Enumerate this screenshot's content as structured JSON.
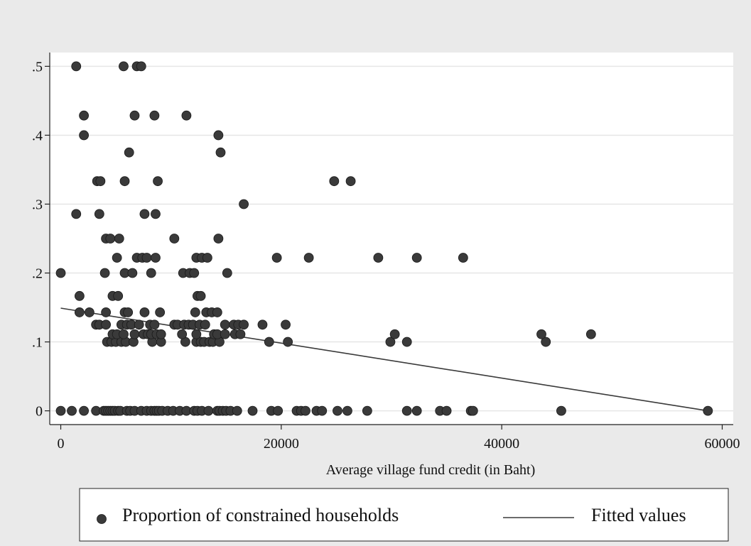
{
  "chart_data": {
    "type": "scatter",
    "title": "",
    "xlabel": "Average village fund credit (in Baht)",
    "ylabel": "",
    "xlim": [
      -1000,
      61000
    ],
    "ylim": [
      -0.02,
      0.52
    ],
    "x_ticks": [
      0,
      20000,
      40000,
      60000
    ],
    "x_tick_labels": [
      "0",
      "20000",
      "40000",
      "60000"
    ],
    "y_ticks": [
      0,
      0.1,
      0.2,
      0.3,
      0.4,
      0.5
    ],
    "y_tick_labels": [
      "0",
      ".1",
      ".2",
      ".3",
      ".4",
      ".5"
    ],
    "grid": true,
    "legend_position": "bottom",
    "colors": {
      "background": "#eaeaea",
      "plot_background": "#ffffff",
      "grid": "#e6e6e6",
      "marker": "#3a3a3a",
      "line": "#3a3a3a"
    },
    "series": [
      {
        "name": "Proportion of constrained households",
        "type": "scatter",
        "points": [
          [
            0,
            0
          ],
          [
            1000,
            0
          ],
          [
            2100,
            0
          ],
          [
            3200,
            0
          ],
          [
            3900,
            0
          ],
          [
            4100,
            0
          ],
          [
            4300,
            0
          ],
          [
            4500,
            0
          ],
          [
            4700,
            0
          ],
          [
            4900,
            0
          ],
          [
            5200,
            0
          ],
          [
            5400,
            0
          ],
          [
            6000,
            0
          ],
          [
            6300,
            0
          ],
          [
            6700,
            0
          ],
          [
            7300,
            0
          ],
          [
            7800,
            0
          ],
          [
            8200,
            0
          ],
          [
            8500,
            0
          ],
          [
            8700,
            0
          ],
          [
            8900,
            0
          ],
          [
            9200,
            0
          ],
          [
            9700,
            0
          ],
          [
            10200,
            0
          ],
          [
            10800,
            0
          ],
          [
            11400,
            0
          ],
          [
            12100,
            0
          ],
          [
            12400,
            0
          ],
          [
            12800,
            0
          ],
          [
            13400,
            0
          ],
          [
            14200,
            0
          ],
          [
            14400,
            0
          ],
          [
            14700,
            0
          ],
          [
            15000,
            0
          ],
          [
            15400,
            0
          ],
          [
            16000,
            0
          ],
          [
            17400,
            0
          ],
          [
            19100,
            0
          ],
          [
            19700,
            0
          ],
          [
            21400,
            0
          ],
          [
            21800,
            0
          ],
          [
            22200,
            0
          ],
          [
            23200,
            0
          ],
          [
            23700,
            0
          ],
          [
            25100,
            0
          ],
          [
            26000,
            0
          ],
          [
            27800,
            0
          ],
          [
            31400,
            0
          ],
          [
            32300,
            0
          ],
          [
            34400,
            0
          ],
          [
            35000,
            0
          ],
          [
            37200,
            0
          ],
          [
            37400,
            0
          ],
          [
            45400,
            0
          ],
          [
            58700,
            0
          ],
          [
            0,
            0.2
          ],
          [
            1400,
            0.5
          ],
          [
            5700,
            0.5
          ],
          [
            6900,
            0.5
          ],
          [
            7300,
            0.5
          ],
          [
            2100,
            0.4286
          ],
          [
            6700,
            0.4286
          ],
          [
            8500,
            0.4286
          ],
          [
            11400,
            0.4286
          ],
          [
            2100,
            0.4
          ],
          [
            14300,
            0.4
          ],
          [
            6200,
            0.375
          ],
          [
            14500,
            0.375
          ],
          [
            3300,
            0.3333
          ],
          [
            3600,
            0.3333
          ],
          [
            5800,
            0.3333
          ],
          [
            8800,
            0.3333
          ],
          [
            24800,
            0.3333
          ],
          [
            26300,
            0.3333
          ],
          [
            1400,
            0.2857
          ],
          [
            3500,
            0.2857
          ],
          [
            7600,
            0.2857
          ],
          [
            8600,
            0.2857
          ],
          [
            16600,
            0.3
          ],
          [
            4100,
            0.25
          ],
          [
            4500,
            0.25
          ],
          [
            5300,
            0.25
          ],
          [
            10300,
            0.25
          ],
          [
            14300,
            0.25
          ],
          [
            4000,
            0.2
          ],
          [
            5800,
            0.2
          ],
          [
            6500,
            0.2
          ],
          [
            8200,
            0.2
          ],
          [
            11100,
            0.2
          ],
          [
            11700,
            0.2
          ],
          [
            12100,
            0.2
          ],
          [
            15100,
            0.2
          ],
          [
            5100,
            0.2222
          ],
          [
            6900,
            0.2222
          ],
          [
            7400,
            0.2222
          ],
          [
            7800,
            0.2222
          ],
          [
            8600,
            0.2222
          ],
          [
            12300,
            0.2222
          ],
          [
            12800,
            0.2222
          ],
          [
            13300,
            0.2222
          ],
          [
            19600,
            0.2222
          ],
          [
            22500,
            0.2222
          ],
          [
            28800,
            0.2222
          ],
          [
            32300,
            0.2222
          ],
          [
            36500,
            0.2222
          ],
          [
            1700,
            0.1667
          ],
          [
            4700,
            0.1667
          ],
          [
            5200,
            0.1667
          ],
          [
            12400,
            0.1667
          ],
          [
            12700,
            0.1667
          ],
          [
            1700,
            0.1429
          ],
          [
            2600,
            0.1429
          ],
          [
            4100,
            0.1429
          ],
          [
            5800,
            0.1429
          ],
          [
            6100,
            0.1429
          ],
          [
            7600,
            0.1429
          ],
          [
            9000,
            0.1429
          ],
          [
            12200,
            0.1429
          ],
          [
            13200,
            0.1429
          ],
          [
            13700,
            0.1429
          ],
          [
            14200,
            0.1429
          ],
          [
            3200,
            0.125
          ],
          [
            3500,
            0.125
          ],
          [
            4100,
            0.125
          ],
          [
            5500,
            0.125
          ],
          [
            6000,
            0.125
          ],
          [
            6400,
            0.125
          ],
          [
            7100,
            0.125
          ],
          [
            8100,
            0.125
          ],
          [
            8500,
            0.125
          ],
          [
            10300,
            0.125
          ],
          [
            10600,
            0.125
          ],
          [
            11200,
            0.125
          ],
          [
            11600,
            0.125
          ],
          [
            12000,
            0.125
          ],
          [
            12600,
            0.125
          ],
          [
            13100,
            0.125
          ],
          [
            14900,
            0.125
          ],
          [
            15700,
            0.125
          ],
          [
            16100,
            0.125
          ],
          [
            16600,
            0.125
          ],
          [
            18300,
            0.125
          ],
          [
            20400,
            0.125
          ],
          [
            4200,
            0.1
          ],
          [
            4600,
            0.1
          ],
          [
            5000,
            0.1
          ],
          [
            5500,
            0.1
          ],
          [
            5900,
            0.1
          ],
          [
            6600,
            0.1
          ],
          [
            8300,
            0.1
          ],
          [
            9100,
            0.1
          ],
          [
            11300,
            0.1
          ],
          [
            12300,
            0.1
          ],
          [
            12700,
            0.1
          ],
          [
            13000,
            0.1
          ],
          [
            13500,
            0.1
          ],
          [
            13800,
            0.1
          ],
          [
            14400,
            0.1
          ],
          [
            18900,
            0.1
          ],
          [
            20600,
            0.1
          ],
          [
            29900,
            0.1
          ],
          [
            31400,
            0.1
          ],
          [
            44000,
            0.1
          ],
          [
            4700,
            0.1111
          ],
          [
            5100,
            0.1111
          ],
          [
            5700,
            0.1111
          ],
          [
            6700,
            0.1111
          ],
          [
            7500,
            0.1111
          ],
          [
            7900,
            0.1111
          ],
          [
            8200,
            0.1111
          ],
          [
            8700,
            0.1111
          ],
          [
            9100,
            0.1111
          ],
          [
            11000,
            0.1111
          ],
          [
            12300,
            0.1111
          ],
          [
            13900,
            0.1111
          ],
          [
            14200,
            0.1111
          ],
          [
            14900,
            0.1111
          ],
          [
            15800,
            0.1111
          ],
          [
            16300,
            0.1111
          ],
          [
            30300,
            0.1111
          ],
          [
            43600,
            0.1111
          ],
          [
            48100,
            0.1111
          ]
        ]
      },
      {
        "name": "Fitted values",
        "type": "line",
        "points": [
          [
            0,
            0.149
          ],
          [
            58700,
            0.0
          ]
        ]
      }
    ]
  }
}
